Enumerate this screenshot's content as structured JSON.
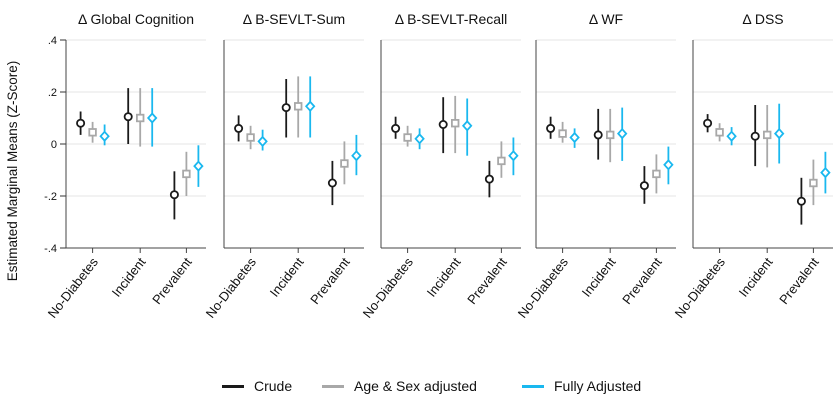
{
  "chart_data": {
    "type": "scatter",
    "ylabel": "Estimated Marginal Means (Z-Score)",
    "ylim": [
      -0.4,
      0.4
    ],
    "yticks": [
      ".4",
      ".2",
      "0",
      "-.2",
      "-.4"
    ],
    "ytick_values": [
      0.4,
      0.2,
      0,
      -0.2,
      -0.4
    ],
    "categories": [
      "No-Diabetes",
      "Incident",
      "Prevalent"
    ],
    "series_colors": [
      "#1a1a1a",
      "#a8a8a8",
      "#1ab8ef"
    ],
    "series_markers": [
      "circle",
      "square",
      "diamond"
    ],
    "legend": {
      "position": "bottom",
      "entries": [
        {
          "label": "Crude",
          "color": "#1a1a1a"
        },
        {
          "label": "Age & Sex adjusted",
          "color": "#a8a8a8"
        },
        {
          "label": "Fully Adjusted",
          "color": "#1ab8ef"
        }
      ]
    },
    "panels": [
      {
        "title": "Δ Global Cognition",
        "estimates": [
          [
            0.08,
            0.105,
            -0.195
          ],
          [
            0.045,
            0.1,
            -0.115
          ],
          [
            0.03,
            0.1,
            -0.085
          ]
        ],
        "ci_low": [
          [
            0.035,
            0.0,
            -0.29
          ],
          [
            0.005,
            -0.01,
            -0.2
          ],
          [
            -0.005,
            -0.01,
            -0.165
          ]
        ],
        "ci_high": [
          [
            0.125,
            0.215,
            -0.105
          ],
          [
            0.085,
            0.215,
            -0.03
          ],
          [
            0.075,
            0.215,
            -0.005
          ]
        ]
      },
      {
        "title": "Δ B-SEVLT-Sum",
        "estimates": [
          [
            0.06,
            0.14,
            -0.15
          ],
          [
            0.025,
            0.145,
            -0.075
          ],
          [
            0.01,
            0.145,
            -0.045
          ]
        ],
        "ci_low": [
          [
            0.01,
            0.025,
            -0.235
          ],
          [
            -0.02,
            0.025,
            -0.155
          ],
          [
            -0.025,
            0.025,
            -0.12
          ]
        ],
        "ci_high": [
          [
            0.11,
            0.25,
            -0.065
          ],
          [
            0.07,
            0.26,
            0.01
          ],
          [
            0.055,
            0.26,
            0.035
          ]
        ]
      },
      {
        "title": "Δ B-SEVLT-Recall",
        "estimates": [
          [
            0.06,
            0.075,
            -0.135
          ],
          [
            0.025,
            0.08,
            -0.065
          ],
          [
            0.02,
            0.07,
            -0.045
          ]
        ],
        "ci_low": [
          [
            0.02,
            -0.035,
            -0.205
          ],
          [
            -0.01,
            -0.035,
            -0.13
          ],
          [
            -0.02,
            -0.045,
            -0.12
          ]
        ],
        "ci_high": [
          [
            0.105,
            0.18,
            -0.065
          ],
          [
            0.07,
            0.185,
            0.01
          ],
          [
            0.06,
            0.175,
            0.025
          ]
        ]
      },
      {
        "title": "Δ WF",
        "estimates": [
          [
            0.06,
            0.035,
            -0.16
          ],
          [
            0.04,
            0.035,
            -0.115
          ],
          [
            0.025,
            0.04,
            -0.08
          ]
        ],
        "ci_low": [
          [
            0.02,
            -0.06,
            -0.23
          ],
          [
            0.005,
            -0.07,
            -0.19
          ],
          [
            -0.015,
            -0.065,
            -0.155
          ]
        ],
        "ci_high": [
          [
            0.105,
            0.135,
            -0.085
          ],
          [
            0.085,
            0.135,
            -0.04
          ],
          [
            0.06,
            0.14,
            -0.01
          ]
        ]
      },
      {
        "title": "Δ DSS",
        "estimates": [
          [
            0.08,
            0.03,
            -0.22
          ],
          [
            0.045,
            0.035,
            -0.15
          ],
          [
            0.03,
            0.04,
            -0.11
          ]
        ],
        "ci_low": [
          [
            0.045,
            -0.085,
            -0.31
          ],
          [
            0.01,
            -0.09,
            -0.235
          ],
          [
            -0.005,
            -0.075,
            -0.19
          ]
        ],
        "ci_high": [
          [
            0.115,
            0.15,
            -0.13
          ],
          [
            0.08,
            0.15,
            -0.06
          ],
          [
            0.065,
            0.155,
            -0.03
          ]
        ]
      }
    ]
  }
}
